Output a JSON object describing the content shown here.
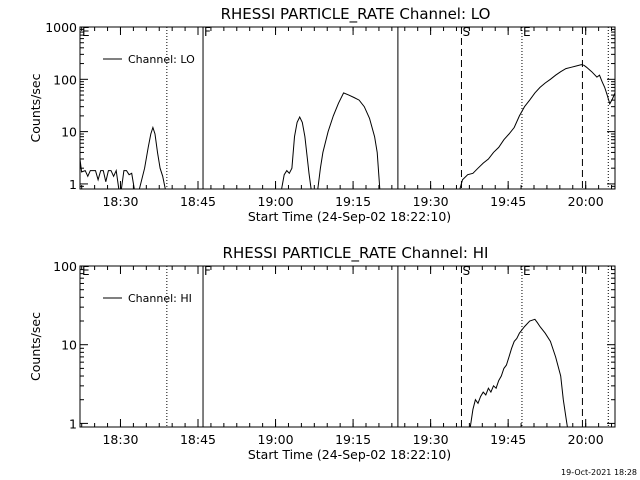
{
  "footer_stamp": "19-Oct-2021 18:28",
  "chart_data": [
    {
      "type": "line",
      "title": "RHESSI PARTICLE_RATE Channel: LO",
      "xlabel": "Start Time (24-Sep-02 18:22:10)",
      "ylabel": "Counts/sec",
      "x_unit": "minutes after 18:22:10",
      "xlim": [
        0,
        103.5
      ],
      "ylim": [
        0.8,
        1000
      ],
      "yscale": "log",
      "x_ticks": [
        {
          "label": "18:30",
          "x": 7.83
        },
        {
          "label": "18:45",
          "x": 22.83
        },
        {
          "label": "19:00",
          "x": 37.83
        },
        {
          "label": "19:15",
          "x": 52.83
        },
        {
          "label": "19:30",
          "x": 67.83
        },
        {
          "label": "19:45",
          "x": 82.83
        },
        {
          "label": "20:00",
          "x": 97.83
        }
      ],
      "y_ticks": [
        {
          "label": "1",
          "y": 1
        },
        {
          "label": "10",
          "y": 10
        },
        {
          "label": "100",
          "y": 100
        },
        {
          "label": "1000",
          "y": 1000
        }
      ],
      "legend": {
        "label": "Channel: LO",
        "placement": "top-left"
      },
      "markers": [
        {
          "label": "E",
          "x": 0.2,
          "style": "none"
        },
        {
          "label": "",
          "x": 16.8,
          "style": "dotted"
        },
        {
          "label": "F",
          "x": 23.8,
          "style": "solid"
        },
        {
          "label": "",
          "x": 61.5,
          "style": "solid"
        },
        {
          "label": "S",
          "x": 73.8,
          "style": "dashed"
        },
        {
          "label": "E",
          "x": 85.5,
          "style": "dotted"
        },
        {
          "label": "",
          "x": 97.2,
          "style": "dashed"
        },
        {
          "label": "",
          "x": 102.2,
          "style": "dotted"
        }
      ],
      "series": [
        {
          "name": "Channel: LO",
          "segments": [
            [
              [
                0,
                3
              ],
              [
                0.3,
                1.7
              ],
              [
                1,
                1.8
              ],
              [
                1.5,
                1.4
              ],
              [
                2,
                1.8
              ],
              [
                3,
                1.8
              ],
              [
                3.5,
                1.2
              ],
              [
                4,
                1.8
              ],
              [
                4.5,
                1.8
              ],
              [
                5,
                1.1
              ],
              [
                5.5,
                1.8
              ],
              [
                6,
                1.8
              ],
              [
                6.5,
                1.4
              ],
              [
                7,
                1.8
              ],
              [
                7.5,
                0.7
              ]
            ],
            [
              [
                8,
                0.7
              ],
              [
                8.5,
                1.8
              ],
              [
                9,
                1.8
              ],
              [
                9.5,
                1.5
              ],
              [
                10,
                1.6
              ],
              [
                10.5,
                0.7
              ]
            ],
            [
              [
                11.5,
                0.7
              ],
              [
                12.5,
                2
              ],
              [
                13.2,
                5
              ],
              [
                13.7,
                9
              ],
              [
                14.1,
                12
              ],
              [
                14.5,
                9
              ],
              [
                15,
                4
              ],
              [
                15.5,
                2
              ],
              [
                16,
                1.4
              ],
              [
                16.5,
                0.7
              ]
            ],
            [
              [
                39,
                0.7
              ],
              [
                39.5,
                1.5
              ],
              [
                40,
                1.8
              ],
              [
                40.5,
                1.6
              ],
              [
                41,
                2
              ],
              [
                41.5,
                8
              ],
              [
                42,
                15
              ],
              [
                42.5,
                19
              ],
              [
                43,
                15
              ],
              [
                43.5,
                8
              ],
              [
                44,
                3
              ],
              [
                44.3,
                1.6
              ],
              [
                44.7,
                0.7
              ]
            ],
            [
              [
                46,
                0.7
              ],
              [
                46.5,
                2
              ],
              [
                47,
                4
              ],
              [
                48,
                10
              ],
              [
                49,
                20
              ],
              [
                50,
                35
              ],
              [
                51,
                55
              ],
              [
                52,
                50
              ],
              [
                53,
                45
              ],
              [
                54,
                40
              ],
              [
                55,
                30
              ],
              [
                56,
                18
              ],
              [
                57,
                8
              ],
              [
                57.5,
                4
              ],
              [
                58,
                0.7
              ]
            ],
            [
              [
                73.5,
                0.7
              ],
              [
                74,
                1.2
              ],
              [
                75,
                1.5
              ],
              [
                76,
                1.6
              ],
              [
                77,
                2
              ],
              [
                78,
                2.5
              ],
              [
                79,
                3
              ],
              [
                80,
                4
              ],
              [
                81,
                5
              ],
              [
                82,
                7
              ],
              [
                83,
                9
              ],
              [
                84,
                12
              ],
              [
                85,
                20
              ],
              [
                86,
                30
              ],
              [
                87,
                40
              ],
              [
                88,
                55
              ],
              [
                89,
                70
              ],
              [
                90,
                85
              ],
              [
                91,
                100
              ],
              [
                92,
                120
              ],
              [
                93,
                140
              ],
              [
                94,
                160
              ],
              [
                95,
                170
              ],
              [
                96,
                180
              ],
              [
                97,
                190
              ],
              [
                97.5,
                185
              ],
              [
                98,
                170
              ],
              [
                99,
                140
              ],
              [
                100,
                110
              ],
              [
                100.5,
                120
              ],
              [
                101,
                90
              ],
              [
                101.5,
                70
              ],
              [
                102,
                50
              ],
              [
                102.5,
                34
              ],
              [
                103,
                42
              ],
              [
                103.5,
                55
              ],
              [
                104,
                40
              ],
              [
                105,
                50
              ]
            ]
          ]
        }
      ]
    },
    {
      "type": "line",
      "title": "RHESSI PARTICLE_RATE Channel: HI",
      "xlabel": "Start Time (24-Sep-02 18:22:10)",
      "ylabel": "Counts/sec",
      "x_unit": "minutes after 18:22:10",
      "xlim": [
        0,
        103.5
      ],
      "ylim": [
        0.9,
        100
      ],
      "yscale": "log",
      "x_ticks": [
        {
          "label": "18:30",
          "x": 7.83
        },
        {
          "label": "18:45",
          "x": 22.83
        },
        {
          "label": "19:00",
          "x": 37.83
        },
        {
          "label": "19:15",
          "x": 52.83
        },
        {
          "label": "19:30",
          "x": 67.83
        },
        {
          "label": "19:45",
          "x": 82.83
        },
        {
          "label": "20:00",
          "x": 97.83
        }
      ],
      "y_ticks": [
        {
          "label": "1",
          "y": 1
        },
        {
          "label": "10",
          "y": 10
        },
        {
          "label": "100",
          "y": 100
        }
      ],
      "legend": {
        "label": "Channel: HI",
        "placement": "top-left"
      },
      "markers": [
        {
          "label": "E",
          "x": 0.2,
          "style": "none"
        },
        {
          "label": "",
          "x": 16.8,
          "style": "dotted"
        },
        {
          "label": "F",
          "x": 23.8,
          "style": "solid"
        },
        {
          "label": "",
          "x": 61.5,
          "style": "solid"
        },
        {
          "label": "S",
          "x": 73.8,
          "style": "dashed"
        },
        {
          "label": "E",
          "x": 85.5,
          "style": "dotted"
        },
        {
          "label": "",
          "x": 97.2,
          "style": "dashed"
        },
        {
          "label": "",
          "x": 102.2,
          "style": "dotted"
        }
      ],
      "series": [
        {
          "name": "Channel: HI",
          "segments": [
            [
              [
                75.5,
                0.85
              ],
              [
                76,
                1.5
              ],
              [
                76.5,
                2
              ],
              [
                77,
                1.8
              ],
              [
                77.5,
                2.2
              ],
              [
                78,
                2.5
              ],
              [
                78.5,
                2.3
              ],
              [
                79,
                2.8
              ],
              [
                79.5,
                2.5
              ],
              [
                80,
                3
              ],
              [
                80.5,
                2.8
              ],
              [
                81,
                3.5
              ],
              [
                81.5,
                4
              ],
              [
                82,
                5
              ],
              [
                82.5,
                5.5
              ],
              [
                83,
                7
              ],
              [
                83.5,
                9
              ],
              [
                84,
                11
              ],
              [
                84.5,
                12
              ],
              [
                85,
                14
              ],
              [
                86,
                17
              ],
              [
                87,
                20
              ],
              [
                88,
                21
              ],
              [
                88.5,
                19
              ],
              [
                89,
                17
              ],
              [
                90,
                14
              ],
              [
                91,
                11
              ],
              [
                92,
                7
              ],
              [
                93,
                4
              ],
              [
                93.5,
                2
              ],
              [
                94,
                1.2
              ],
              [
                94.3,
                0.85
              ]
            ]
          ]
        }
      ]
    }
  ]
}
